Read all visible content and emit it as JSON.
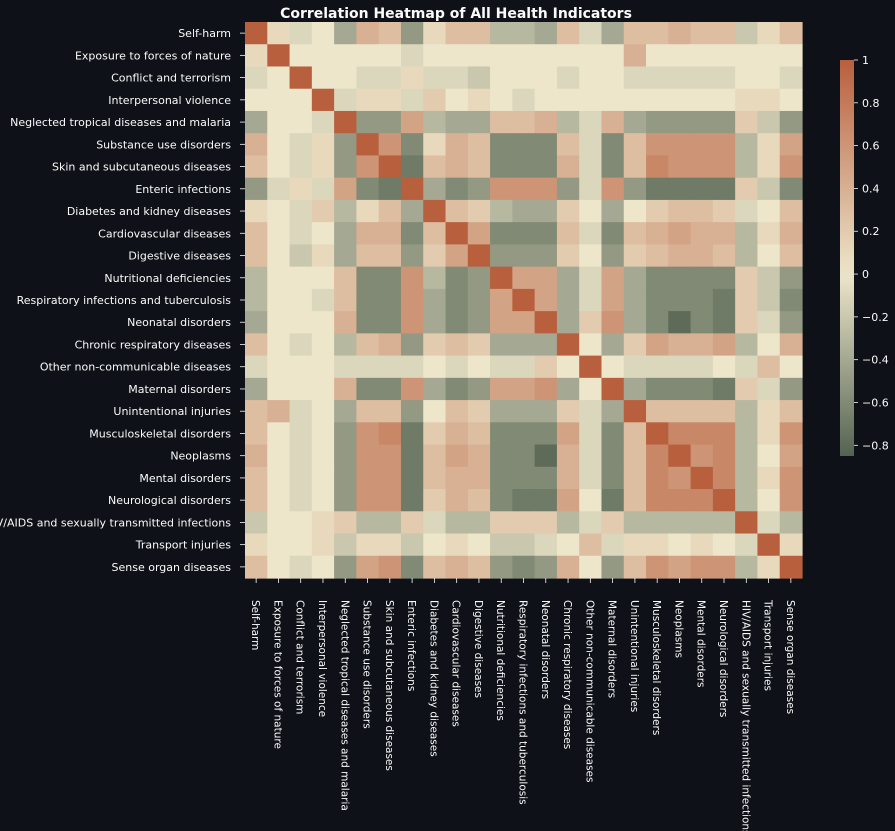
{
  "chart_data": {
    "type": "heatmap",
    "title": "Correlation Heatmap of All Health Indicators",
    "xlabel": "",
    "ylabel": "",
    "categories": [
      "Self-harm",
      "Exposure to forces of nature",
      "Conflict and terrorism",
      "Interpersonal violence",
      "Neglected tropical diseases and malaria",
      "Substance use disorders",
      "Skin and subcutaneous diseases",
      "Enteric infections",
      "Diabetes and kidney diseases",
      "Cardiovascular diseases",
      "Digestive diseases",
      "Nutritional deficiencies",
      "Respiratory infections and tuberculosis",
      "Neonatal disorders",
      "Chronic respiratory diseases",
      "Other non-communicable diseases",
      "Maternal disorders",
      "Unintentional injuries",
      "Musculoskeletal disorders",
      "Neoplasms",
      "Mental disorders",
      "Neurological disorders",
      "HIV/AIDS and sexually transmitted infections",
      "Transport injuries",
      "Sense organ diseases"
    ],
    "matrix": [
      [
        1.0,
        0.1,
        -0.1,
        0.0,
        -0.4,
        0.4,
        0.3,
        -0.5,
        0.1,
        0.3,
        0.3,
        -0.3,
        -0.3,
        -0.4,
        0.3,
        -0.1,
        -0.4,
        0.3,
        0.3,
        0.4,
        0.3,
        0.3,
        -0.2,
        0.1,
        0.3
      ],
      [
        0.1,
        1.0,
        0.0,
        0.0,
        0.0,
        0.0,
        0.0,
        -0.1,
        0.0,
        0.0,
        0.0,
        0.0,
        0.0,
        0.0,
        0.0,
        0.0,
        0.0,
        0.4,
        0.0,
        0.0,
        0.0,
        0.0,
        0.0,
        0.0,
        0.0
      ],
      [
        -0.1,
        0.0,
        1.0,
        0.0,
        0.0,
        -0.1,
        -0.1,
        0.1,
        -0.1,
        -0.1,
        -0.2,
        0.0,
        0.0,
        0.0,
        -0.1,
        0.0,
        0.0,
        -0.1,
        -0.1,
        -0.1,
        -0.1,
        -0.1,
        0.0,
        0.0,
        -0.1
      ],
      [
        0.0,
        0.0,
        0.0,
        1.0,
        -0.1,
        0.1,
        0.1,
        -0.1,
        0.2,
        0.0,
        0.1,
        0.0,
        -0.1,
        0.0,
        0.0,
        0.0,
        0.0,
        0.0,
        0.0,
        0.0,
        0.0,
        0.0,
        0.1,
        0.1,
        0.0
      ],
      [
        -0.4,
        0.0,
        0.0,
        -0.1,
        1.0,
        -0.5,
        -0.5,
        0.5,
        -0.3,
        -0.4,
        -0.4,
        0.3,
        0.3,
        0.4,
        -0.3,
        -0.1,
        0.4,
        -0.4,
        -0.5,
        -0.5,
        -0.5,
        -0.5,
        0.2,
        -0.2,
        -0.5
      ],
      [
        0.4,
        0.0,
        -0.1,
        0.1,
        -0.5,
        1.0,
        0.6,
        -0.6,
        0.1,
        0.4,
        0.3,
        -0.6,
        -0.6,
        -0.6,
        0.3,
        -0.1,
        -0.6,
        0.3,
        0.6,
        0.6,
        0.6,
        0.6,
        -0.3,
        0.1,
        0.5
      ],
      [
        0.3,
        0.0,
        -0.1,
        0.1,
        -0.5,
        0.6,
        1.0,
        -0.7,
        0.3,
        0.4,
        0.3,
        -0.6,
        -0.6,
        -0.6,
        0.4,
        -0.1,
        -0.6,
        0.3,
        0.7,
        0.6,
        0.6,
        0.6,
        -0.3,
        0.1,
        0.6
      ],
      [
        -0.5,
        -0.1,
        0.1,
        -0.1,
        0.5,
        -0.6,
        -0.7,
        1.0,
        -0.4,
        -0.6,
        -0.5,
        0.6,
        0.6,
        0.6,
        -0.5,
        -0.1,
        0.6,
        -0.5,
        -0.7,
        -0.7,
        -0.7,
        -0.7,
        0.2,
        -0.2,
        -0.6
      ],
      [
        0.1,
        0.0,
        -0.1,
        0.2,
        -0.3,
        0.1,
        0.3,
        -0.4,
        1.0,
        0.3,
        0.2,
        -0.3,
        -0.4,
        -0.4,
        0.2,
        0.0,
        -0.4,
        0.0,
        0.2,
        0.3,
        0.3,
        0.2,
        -0.1,
        0.0,
        0.3
      ],
      [
        0.3,
        0.0,
        -0.1,
        0.0,
        -0.4,
        0.4,
        0.4,
        -0.6,
        0.3,
        1.0,
        0.5,
        -0.6,
        -0.6,
        -0.6,
        0.3,
        -0.1,
        -0.6,
        0.3,
        0.4,
        0.5,
        0.4,
        0.4,
        -0.3,
        0.1,
        0.4
      ],
      [
        0.3,
        0.0,
        -0.2,
        0.1,
        -0.4,
        0.3,
        0.3,
        -0.5,
        0.2,
        0.5,
        1.0,
        -0.5,
        -0.5,
        -0.5,
        0.2,
        0.0,
        -0.5,
        0.2,
        0.3,
        0.4,
        0.4,
        0.3,
        -0.3,
        0.0,
        0.3
      ],
      [
        -0.3,
        0.0,
        0.0,
        0.0,
        0.3,
        -0.6,
        -0.6,
        0.6,
        -0.3,
        -0.6,
        -0.5,
        1.0,
        0.5,
        0.5,
        -0.4,
        -0.1,
        0.5,
        -0.4,
        -0.6,
        -0.6,
        -0.6,
        -0.6,
        0.2,
        -0.2,
        -0.5
      ],
      [
        -0.3,
        0.0,
        0.0,
        -0.1,
        0.3,
        -0.6,
        -0.6,
        0.6,
        -0.4,
        -0.6,
        -0.5,
        0.5,
        1.0,
        0.5,
        -0.4,
        -0.1,
        0.5,
        -0.4,
        -0.6,
        -0.6,
        -0.6,
        -0.7,
        0.2,
        -0.2,
        -0.6
      ],
      [
        -0.4,
        0.0,
        0.0,
        0.0,
        0.4,
        -0.6,
        -0.6,
        0.6,
        -0.4,
        -0.6,
        -0.5,
        0.5,
        0.5,
        1.0,
        -0.4,
        0.2,
        0.6,
        -0.4,
        -0.6,
        -0.8,
        -0.6,
        -0.7,
        0.2,
        -0.1,
        -0.5
      ],
      [
        0.3,
        0.0,
        -0.1,
        0.0,
        -0.3,
        0.3,
        0.4,
        -0.5,
        0.2,
        0.3,
        0.2,
        -0.4,
        -0.4,
        -0.4,
        1.0,
        0.0,
        -0.4,
        0.2,
        0.5,
        0.4,
        0.4,
        0.5,
        -0.3,
        0.0,
        0.4
      ],
      [
        -0.1,
        0.0,
        0.0,
        0.0,
        -0.1,
        -0.1,
        -0.1,
        -0.1,
        0.0,
        -0.1,
        0.0,
        -0.1,
        -0.1,
        0.2,
        0.0,
        1.0,
        0.0,
        -0.1,
        -0.1,
        -0.1,
        -0.1,
        0.0,
        -0.1,
        0.3,
        0.0
      ],
      [
        -0.4,
        0.0,
        0.0,
        0.0,
        0.4,
        -0.6,
        -0.6,
        0.6,
        -0.4,
        -0.6,
        -0.5,
        0.5,
        0.5,
        0.6,
        -0.4,
        0.0,
        1.0,
        -0.4,
        -0.6,
        -0.6,
        -0.6,
        -0.7,
        0.2,
        -0.1,
        -0.5
      ],
      [
        0.3,
        0.4,
        -0.1,
        0.0,
        -0.4,
        0.3,
        0.3,
        -0.5,
        0.0,
        0.3,
        0.2,
        -0.4,
        -0.4,
        -0.4,
        0.2,
        -0.1,
        -0.4,
        1.0,
        0.3,
        0.3,
        0.3,
        0.3,
        -0.3,
        0.1,
        0.3
      ],
      [
        0.3,
        0.0,
        -0.1,
        0.0,
        -0.5,
        0.6,
        0.7,
        -0.7,
        0.2,
        0.4,
        0.3,
        -0.6,
        -0.6,
        -0.6,
        0.5,
        -0.1,
        -0.6,
        0.3,
        1.0,
        0.7,
        0.7,
        0.7,
        -0.3,
        0.1,
        0.6
      ],
      [
        0.4,
        0.0,
        -0.1,
        0.0,
        -0.5,
        0.6,
        0.6,
        -0.7,
        0.3,
        0.5,
        0.4,
        -0.6,
        -0.6,
        -0.8,
        0.4,
        -0.1,
        -0.6,
        0.3,
        0.7,
        1.0,
        0.6,
        0.7,
        -0.3,
        0.0,
        0.5
      ],
      [
        0.3,
        0.0,
        -0.1,
        0.0,
        -0.5,
        0.6,
        0.6,
        -0.7,
        0.3,
        0.4,
        0.4,
        -0.6,
        -0.6,
        -0.6,
        0.4,
        -0.1,
        -0.6,
        0.3,
        0.7,
        0.6,
        1.0,
        0.7,
        -0.3,
        0.1,
        0.6
      ],
      [
        0.3,
        0.0,
        -0.1,
        0.0,
        -0.5,
        0.6,
        0.6,
        -0.7,
        0.2,
        0.4,
        0.3,
        -0.6,
        -0.7,
        -0.7,
        0.5,
        0.0,
        -0.7,
        0.3,
        0.7,
        0.7,
        0.7,
        1.0,
        -0.3,
        0.0,
        0.6
      ],
      [
        -0.2,
        0.0,
        0.0,
        0.1,
        0.2,
        -0.3,
        -0.3,
        0.2,
        -0.1,
        -0.3,
        -0.3,
        0.2,
        0.2,
        0.2,
        -0.3,
        -0.1,
        0.2,
        -0.3,
        -0.3,
        -0.3,
        -0.3,
        -0.3,
        1.0,
        -0.1,
        -0.3
      ],
      [
        0.1,
        0.0,
        0.0,
        0.1,
        -0.2,
        0.1,
        0.1,
        -0.2,
        0.0,
        0.1,
        0.0,
        -0.2,
        -0.2,
        -0.1,
        0.0,
        0.3,
        -0.1,
        0.1,
        0.1,
        0.0,
        0.1,
        0.0,
        -0.1,
        1.0,
        0.1
      ],
      [
        0.3,
        0.0,
        -0.1,
        0.0,
        -0.5,
        0.5,
        0.6,
        -0.6,
        0.3,
        0.4,
        0.3,
        -0.5,
        -0.6,
        -0.5,
        0.4,
        0.0,
        -0.5,
        0.3,
        0.6,
        0.5,
        0.6,
        0.6,
        -0.3,
        0.1,
        1.0
      ]
    ],
    "colorbar": {
      "min": -0.85,
      "max": 1.0,
      "ticks": [
        1,
        0.8,
        0.6,
        0.4,
        0.2,
        0,
        -0.2,
        -0.4,
        -0.6,
        -0.8
      ],
      "tick_labels": [
        "1",
        "0.8",
        "0.6",
        "0.4",
        "0.2",
        "0",
        "−0.2",
        "−0.4",
        "−0.6",
        "−0.8"
      ],
      "color_low": "#546351",
      "color_mid": "#ede6cb",
      "color_high": "#b85f3e"
    },
    "background_color": "#0e1117",
    "text_color": "#fafafa"
  }
}
